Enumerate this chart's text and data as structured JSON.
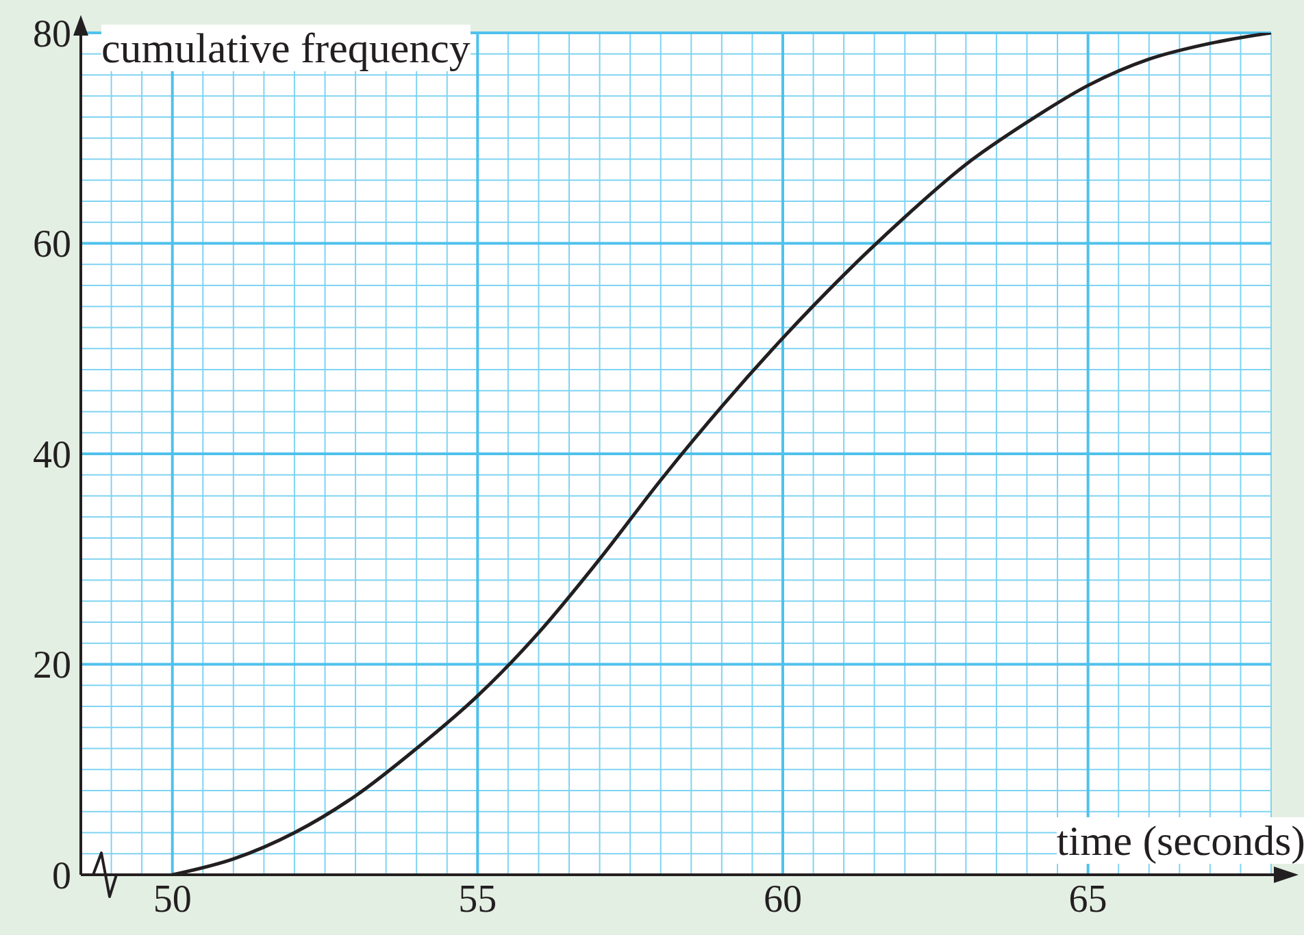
{
  "chart_data": {
    "type": "line",
    "xlabel": "time (seconds)",
    "ylabel": "cumulative frequency",
    "x": [
      50,
      51,
      52,
      53,
      54,
      55,
      56,
      57,
      58,
      59,
      60,
      61,
      62,
      63,
      64,
      65,
      66,
      67,
      68
    ],
    "series": [
      {
        "color": "#231f20",
        "values": [
          0,
          1.5,
          4,
          7.5,
          12,
          17,
          23,
          30,
          37.5,
          44.5,
          51,
          57,
          62.5,
          67.5,
          71.5,
          75,
          77.5,
          79,
          80
        ]
      }
    ],
    "xlim": [
      48.5,
      68
    ],
    "xticks": [
      {
        "value": 48.5,
        "label": null
      },
      {
        "value": 49,
        "label": null
      },
      {
        "value": 49.5,
        "label": null
      },
      50,
      {
        "value": 50.5,
        "label": null
      },
      {
        "value": 51,
        "label": null
      },
      {
        "value": 51.5,
        "label": null
      },
      {
        "value": 52,
        "label": null
      },
      {
        "value": 52.5,
        "label": null
      },
      {
        "value": 53,
        "label": null
      },
      {
        "value": 53.5,
        "label": null
      },
      {
        "value": 54,
        "label": null
      },
      {
        "value": 54.5,
        "label": null
      },
      55,
      {
        "value": 55.5,
        "label": null
      },
      {
        "value": 56,
        "label": null
      },
      {
        "value": 56.5,
        "label": null
      },
      {
        "value": 57,
        "label": null
      },
      {
        "value": 57.5,
        "label": null
      },
      {
        "value": 58,
        "label": null
      },
      {
        "value": 58.5,
        "label": null
      },
      {
        "value": 59,
        "label": null
      },
      {
        "value": 59.5,
        "label": null
      },
      60,
      {
        "value": 60.5,
        "label": null
      },
      {
        "value": 61,
        "label": null
      },
      {
        "value": 61.5,
        "label": null
      },
      {
        "value": 62,
        "label": null
      },
      {
        "value": 62.5,
        "label": null
      },
      {
        "value": 63,
        "label": null
      },
      {
        "value": 63.5,
        "label": null
      },
      {
        "value": 64,
        "label": null
      },
      {
        "value": 64.5,
        "label": null
      },
      65,
      {
        "value": 65.5,
        "label": null
      },
      {
        "value": 66,
        "label": null
      },
      {
        "value": 66.5,
        "label": null
      },
      {
        "value": 67,
        "label": null
      },
      {
        "value": 67.5,
        "label": null
      },
      {
        "value": 68,
        "label": null
      }
    ],
    "ylim": [
      0,
      80
    ],
    "yticks": [
      0,
      {
        "value": 2,
        "label": null
      },
      {
        "value": 4,
        "label": null
      },
      {
        "value": 6,
        "label": null
      },
      {
        "value": 8,
        "label": null
      },
      {
        "value": 10,
        "label": null
      },
      {
        "value": 12,
        "label": null
      },
      {
        "value": 14,
        "label": null
      },
      {
        "value": 16,
        "label": null
      },
      {
        "value": 18,
        "label": null
      },
      20,
      {
        "value": 22,
        "label": null
      },
      {
        "value": 24,
        "label": null
      },
      {
        "value": 26,
        "label": null
      },
      {
        "value": 28,
        "label": null
      },
      {
        "value": 30,
        "label": null
      },
      {
        "value": 32,
        "label": null
      },
      {
        "value": 34,
        "label": null
      },
      {
        "value": 36,
        "label": null
      },
      {
        "value": 38,
        "label": null
      },
      40,
      {
        "value": 42,
        "label": null
      },
      {
        "value": 44,
        "label": null
      },
      {
        "value": 46,
        "label": null
      },
      {
        "value": 48,
        "label": null
      },
      {
        "value": 50,
        "label": null
      },
      {
        "value": 52,
        "label": null
      },
      {
        "value": 54,
        "label": null
      },
      {
        "value": 56,
        "label": null
      },
      {
        "value": 58,
        "label": null
      },
      60,
      {
        "value": 62,
        "label": null
      },
      {
        "value": 64,
        "label": null
      },
      {
        "value": 66,
        "label": null
      },
      {
        "value": 68,
        "label": null
      },
      {
        "value": 70,
        "label": null
      },
      {
        "value": 72,
        "label": null
      },
      {
        "value": 74,
        "label": null
      },
      {
        "value": 76,
        "label": null
      },
      {
        "value": 78,
        "label": null
      },
      80
    ],
    "grid": true,
    "legend": false,
    "marker": "none",
    "line_style": "solid"
  }
}
